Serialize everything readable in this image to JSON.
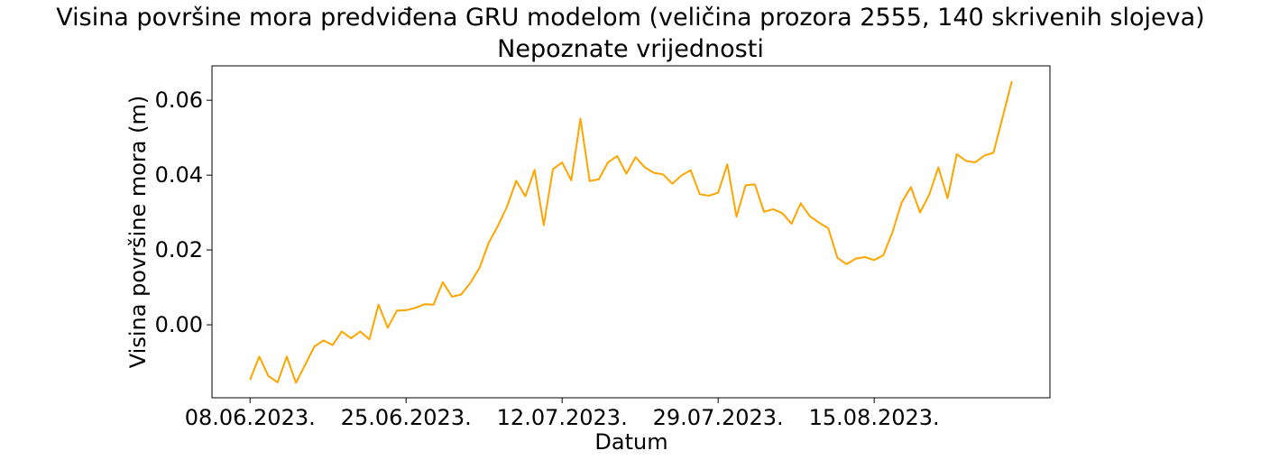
{
  "chart_data": {
    "type": "line",
    "title": "Visina površine mora predviđena GRU modelom (veličina prozora 2555, 140 skrivenih slojeva)",
    "subtitle": "Nepoznate vrijednosti",
    "xlabel": "Datum",
    "ylabel": "Visina površine mora (m)",
    "x_tick_labels": [
      "08.06.2023.",
      "25.06.2023.",
      "12.07.2023.",
      "29.07.2023.",
      "15.08.2023."
    ],
    "y_tick_labels": [
      "0.00",
      "0.02",
      "0.04",
      "0.06"
    ],
    "ylim": [
      -0.0195,
      0.0692
    ],
    "grid": false,
    "series": [
      {
        "color": "#FFA500",
        "x": [
          "2023-06-08",
          "2023-06-09",
          "2023-06-10",
          "2023-06-11",
          "2023-06-12",
          "2023-06-13",
          "2023-06-14",
          "2023-06-15",
          "2023-06-16",
          "2023-06-17",
          "2023-06-18",
          "2023-06-19",
          "2023-06-20",
          "2023-06-21",
          "2023-06-22",
          "2023-06-23",
          "2023-06-24",
          "2023-06-25",
          "2023-06-26",
          "2023-06-27",
          "2023-06-28",
          "2023-06-29",
          "2023-06-30",
          "2023-07-01",
          "2023-07-02",
          "2023-07-03",
          "2023-07-04",
          "2023-07-05",
          "2023-07-06",
          "2023-07-07",
          "2023-07-08",
          "2023-07-09",
          "2023-07-10",
          "2023-07-11",
          "2023-07-12",
          "2023-07-13",
          "2023-07-14",
          "2023-07-15",
          "2023-07-16",
          "2023-07-17",
          "2023-07-18",
          "2023-07-19",
          "2023-07-20",
          "2023-07-21",
          "2023-07-22",
          "2023-07-23",
          "2023-07-24",
          "2023-07-25",
          "2023-07-26",
          "2023-07-27",
          "2023-07-28",
          "2023-07-29",
          "2023-07-30",
          "2023-07-31",
          "2023-08-01",
          "2023-08-02",
          "2023-08-03",
          "2023-08-04",
          "2023-08-05",
          "2023-08-06",
          "2023-08-07",
          "2023-08-08",
          "2023-08-09",
          "2023-08-10",
          "2023-08-11",
          "2023-08-12",
          "2023-08-13",
          "2023-08-14",
          "2023-08-15",
          "2023-08-16",
          "2023-08-17",
          "2023-08-18",
          "2023-08-19",
          "2023-08-20",
          "2023-08-21",
          "2023-08-22",
          "2023-08-23",
          "2023-08-24",
          "2023-08-25",
          "2023-08-26",
          "2023-08-27",
          "2023-08-28",
          "2023-08-29",
          "2023-08-30"
        ],
        "y": [
          -0.0147,
          -0.0085,
          -0.0137,
          -0.0154,
          -0.0085,
          -0.0155,
          -0.0107,
          -0.0058,
          -0.0042,
          -0.0054,
          -0.0018,
          -0.0036,
          -0.0018,
          -0.0039,
          0.0054,
          -0.0008,
          0.0038,
          0.0039,
          0.0045,
          0.0055,
          0.0054,
          0.0114,
          0.0075,
          0.0081,
          0.0112,
          0.0152,
          0.0219,
          0.0264,
          0.0316,
          0.0385,
          0.0343,
          0.0414,
          0.0266,
          0.0416,
          0.0434,
          0.0386,
          0.0551,
          0.0384,
          0.0389,
          0.0434,
          0.0451,
          0.0404,
          0.0448,
          0.0421,
          0.0406,
          0.0402,
          0.0377,
          0.0399,
          0.0413,
          0.0349,
          0.0345,
          0.0353,
          0.0429,
          0.0289,
          0.0373,
          0.0375,
          0.0302,
          0.0309,
          0.0298,
          0.027,
          0.0325,
          0.029,
          0.0273,
          0.0258,
          0.0179,
          0.0162,
          0.0177,
          0.0181,
          0.0173,
          0.0186,
          0.0248,
          0.0327,
          0.0368,
          0.03,
          0.0348,
          0.0421,
          0.0338,
          0.0456,
          0.0438,
          0.0434,
          0.0452,
          0.046,
          0.0555,
          0.0651
        ]
      }
    ]
  }
}
